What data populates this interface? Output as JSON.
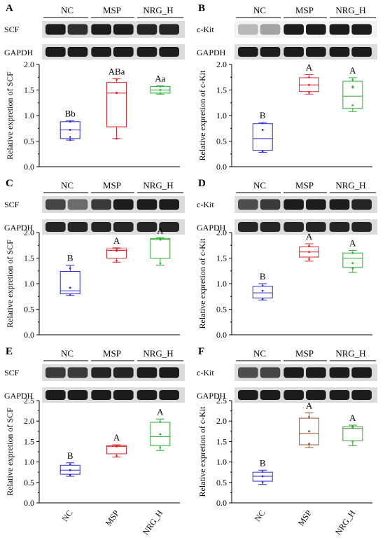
{
  "colors": {
    "nc": "#2b2bd8",
    "msp": "#e0242a",
    "nrg": "#22b02a",
    "msp_panel_f": "#9a5530",
    "nrg_panel_f": "#3f9a3a",
    "axis": "#000000"
  },
  "chart_data": [
    {
      "panel": "A",
      "type": "box",
      "groups": [
        "NC",
        "MSP",
        "NRG_H"
      ],
      "blot_label": "SCF",
      "loading_label": "GAPDH",
      "ylabel": "Relative expretion of SCF",
      "ylim": [
        0,
        2.0
      ],
      "yticks": [
        "0.0",
        "0.5",
        "1.0",
        "1.5",
        "2.0"
      ],
      "show_xticklabels": false,
      "series": [
        {
          "name": "NC",
          "min": 0.52,
          "q1": 0.55,
          "median": 0.72,
          "q3": 0.88,
          "max": 0.9,
          "mean": 0.72,
          "points": [
            0.52,
            0.58,
            0.88
          ],
          "letter": "Bb"
        },
        {
          "name": "MSP",
          "min": 0.55,
          "q1": 0.78,
          "median": 1.44,
          "q3": 1.65,
          "max": 1.72,
          "mean": 1.44,
          "points": [
            0.55,
            1.45,
            1.7
          ],
          "letter": "ABa"
        },
        {
          "name": "NRG_H",
          "min": 1.42,
          "q1": 1.44,
          "median": 1.5,
          "q3": 1.57,
          "max": 1.58,
          "mean": 1.5,
          "points": [
            1.43,
            1.5,
            1.57
          ],
          "letter": "Aa"
        }
      ]
    },
    {
      "panel": "B",
      "type": "box",
      "groups": [
        "NC",
        "MSP",
        "NRG_H"
      ],
      "blot_label": "c-Kit",
      "loading_label": "GAPDH",
      "ylabel": "Relative expretion of c-Kit",
      "ylim": [
        0,
        2.0
      ],
      "yticks": [
        "0.0",
        "0.5",
        "1.0",
        "1.5",
        "2.0"
      ],
      "show_xticklabels": false,
      "series": [
        {
          "name": "NC",
          "min": 0.28,
          "q1": 0.32,
          "median": 0.55,
          "q3": 0.84,
          "max": 0.86,
          "mean": 0.72,
          "points": [
            0.3,
            0.72,
            0.85
          ],
          "letter": "B"
        },
        {
          "name": "MSP",
          "min": 1.42,
          "q1": 1.47,
          "median": 1.6,
          "q3": 1.74,
          "max": 1.8,
          "mean": 1.6,
          "points": [
            1.45,
            1.6,
            1.75
          ],
          "letter": "A"
        },
        {
          "name": "NRG_H",
          "min": 1.08,
          "q1": 1.14,
          "median": 1.38,
          "q3": 1.67,
          "max": 1.74,
          "mean": 1.55,
          "points": [
            1.2,
            1.57,
            1.7
          ],
          "letter": "A"
        }
      ]
    },
    {
      "panel": "C",
      "type": "box",
      "groups": [
        "NC",
        "MSP",
        "NRG_H"
      ],
      "blot_label": "SCF",
      "loading_label": "GAPDH",
      "ylabel": "Relative expretion of SCF",
      "ylim": [
        0,
        2.0
      ],
      "yticks": [
        "0.0",
        "0.5",
        "1.0",
        "1.5",
        "2.0"
      ],
      "show_xticklabels": false,
      "series": [
        {
          "name": "NC",
          "min": 0.77,
          "q1": 0.8,
          "median": 0.86,
          "q3": 1.24,
          "max": 1.36,
          "mean": 0.92,
          "points": [
            0.78,
            0.92,
            1.3
          ],
          "letter": "B"
        },
        {
          "name": "MSP",
          "min": 1.42,
          "q1": 1.5,
          "median": 1.65,
          "q3": 1.68,
          "max": 1.7,
          "mean": 1.65,
          "points": [
            1.45,
            1.64,
            1.68
          ],
          "letter": "A"
        },
        {
          "name": "NRG_H",
          "min": 1.36,
          "q1": 1.5,
          "median": 1.87,
          "q3": 1.88,
          "max": 1.9,
          "mean": 1.87,
          "points": [
            1.4,
            1.86,
            1.88
          ],
          "letter": "A"
        }
      ]
    },
    {
      "panel": "D",
      "type": "box",
      "groups": [
        "NC",
        "MSP",
        "NRG_H"
      ],
      "blot_label": "c-Kit",
      "loading_label": "GAPDH",
      "ylabel": "Relative expretion of c-Kit",
      "ylim": [
        0,
        2.0
      ],
      "yticks": [
        "0.0",
        "0.5",
        "1.0",
        "1.5",
        "2.0"
      ],
      "show_xticklabels": false,
      "series": [
        {
          "name": "NC",
          "min": 0.68,
          "q1": 0.72,
          "median": 0.82,
          "q3": 0.95,
          "max": 1.0,
          "mean": 0.86,
          "points": [
            0.7,
            0.86,
            0.96
          ],
          "letter": "B"
        },
        {
          "name": "MSP",
          "min": 1.44,
          "q1": 1.52,
          "median": 1.62,
          "q3": 1.72,
          "max": 1.78,
          "mean": 1.62,
          "points": [
            1.48,
            1.62,
            1.74
          ],
          "letter": "A"
        },
        {
          "name": "NRG_H",
          "min": 1.22,
          "q1": 1.32,
          "median": 1.5,
          "q3": 1.6,
          "max": 1.65,
          "mean": 1.4,
          "points": [
            1.3,
            1.4,
            1.6
          ],
          "letter": "A"
        }
      ]
    },
    {
      "panel": "E",
      "type": "box",
      "groups": [
        "NC",
        "MSP",
        "NRG_H"
      ],
      "blot_label": "SCF",
      "loading_label": "GAPDH",
      "ylabel": "Relative expretion of SCF",
      "ylim": [
        0,
        2.5
      ],
      "yticks": [
        "0.0",
        "0.5",
        "1.0",
        "1.5",
        "2.0",
        "2.5"
      ],
      "show_xticklabels": true,
      "series": [
        {
          "name": "NC",
          "min": 0.65,
          "q1": 0.7,
          "median": 0.8,
          "q3": 0.92,
          "max": 0.98,
          "mean": 0.8,
          "points": [
            0.68,
            0.8,
            0.94
          ],
          "letter": "B"
        },
        {
          "name": "MSP",
          "min": 1.12,
          "q1": 1.2,
          "median": 1.38,
          "q3": 1.4,
          "max": 1.42,
          "mean": 1.38,
          "points": [
            1.15,
            1.38,
            1.4
          ],
          "letter": "A"
        },
        {
          "name": "NRG_H",
          "min": 1.28,
          "q1": 1.4,
          "median": 1.62,
          "q3": 1.97,
          "max": 2.05,
          "mean": 1.68,
          "points": [
            1.35,
            1.68,
            1.98
          ],
          "letter": "A"
        }
      ]
    },
    {
      "panel": "F",
      "type": "box",
      "groups": [
        "NC",
        "MSP",
        "NRG_H"
      ],
      "blot_label": "c-Kit",
      "loading_label": "GAPDH",
      "ylabel": "Relative expretion of c-Kit",
      "ylim": [
        0,
        2.5
      ],
      "yticks": [
        "0.0",
        "0.5",
        "1.0",
        "1.5",
        "2.0",
        "2.5"
      ],
      "show_xticklabels": true,
      "series": [
        {
          "name": "NC",
          "min": 0.45,
          "q1": 0.53,
          "median": 0.65,
          "q3": 0.75,
          "max": 0.8,
          "mean": 0.65,
          "points": [
            0.5,
            0.65,
            0.76
          ],
          "letter": "B"
        },
        {
          "name": "MSP",
          "min": 1.35,
          "q1": 1.42,
          "median": 1.7,
          "q3": 2.07,
          "max": 2.2,
          "mean": 1.75,
          "points": [
            1.45,
            1.75,
            2.1
          ],
          "letter": "A"
        },
        {
          "name": "NRG_H",
          "min": 1.4,
          "q1": 1.52,
          "median": 1.82,
          "q3": 1.86,
          "max": 1.9,
          "mean": 1.85,
          "points": [
            1.5,
            1.84,
            1.87
          ],
          "letter": "A"
        }
      ]
    }
  ]
}
